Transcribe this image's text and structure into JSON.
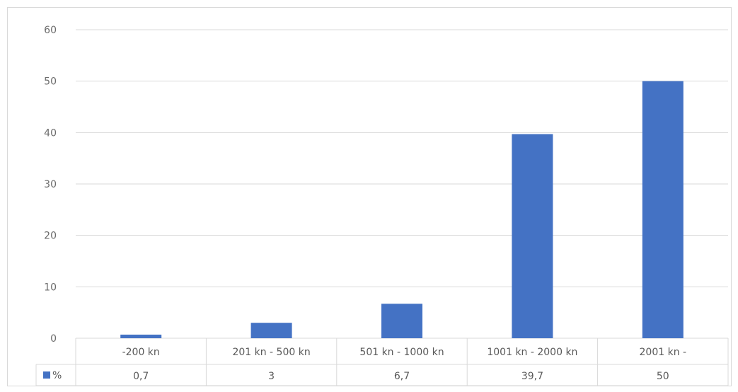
{
  "chart_data": {
    "type": "bar",
    "categories": [
      "-200 kn",
      "201 kn - 500 kn",
      "501 kn - 1000 kn",
      "1001 kn - 2000 kn",
      "2001 kn -"
    ],
    "series": [
      {
        "name": "%",
        "values": [
          0.7,
          3,
          6.7,
          39.7,
          50
        ],
        "value_labels": [
          "0,7",
          "3",
          "6,7",
          "39,7",
          "50"
        ],
        "color": "#4472c4"
      }
    ],
    "ylim": [
      0,
      60
    ],
    "yticks": [
      0,
      10,
      20,
      30,
      40,
      50,
      60
    ],
    "grid": true,
    "legend": "data-table",
    "data_table": true,
    "colors": {
      "bar": "#4472c4",
      "grid": "#d9d9d9",
      "text": "#595959"
    }
  }
}
